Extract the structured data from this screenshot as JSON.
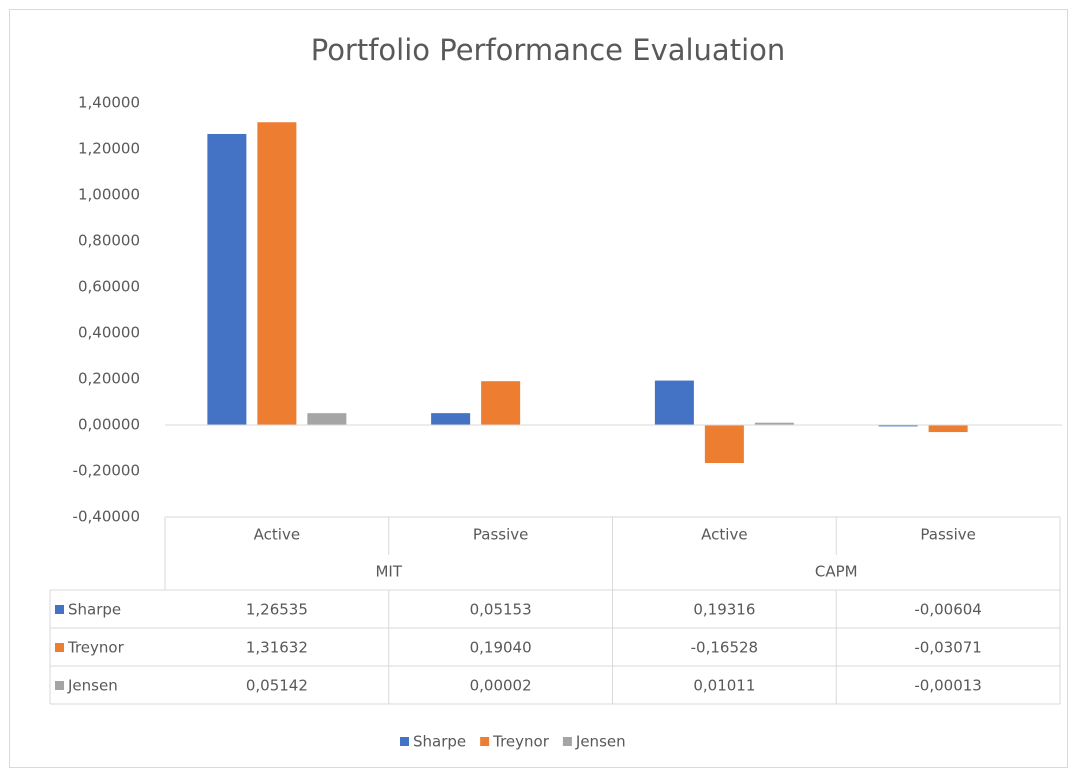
{
  "chart_data": {
    "type": "bar",
    "title": "Portfolio Performance Evaluation",
    "categories": [
      "Active",
      "Passive",
      "Active",
      "Passive"
    ],
    "groups": [
      "MIT",
      "CAPM"
    ],
    "series": [
      {
        "name": "Sharpe",
        "color": "#4472c4",
        "values": [
          1.26535,
          0.05153,
          0.19316,
          -0.00604
        ],
        "value_labels": [
          "1,26535",
          "0,05153",
          "0,19316",
          "-0,00604"
        ]
      },
      {
        "name": "Treynor",
        "color": "#ed7d31",
        "values": [
          1.31632,
          0.1904,
          -0.16528,
          -0.03071
        ],
        "value_labels": [
          "1,31632",
          "0,19040",
          "-0,16528",
          "-0,03071"
        ]
      },
      {
        "name": "Jensen",
        "color": "#a5a5a5",
        "values": [
          0.05142,
          2e-05,
          0.01011,
          -0.00013
        ],
        "value_labels": [
          "0,05142",
          "0,00002",
          "0,01011",
          "-0,00013"
        ]
      }
    ],
    "ylim": [
      -0.4,
      1.4
    ],
    "yticks": [
      {
        "value": 1.4,
        "label": "1,40000"
      },
      {
        "value": 1.2,
        "label": "1,20000"
      },
      {
        "value": 1.0,
        "label": "1,00000"
      },
      {
        "value": 0.8,
        "label": "0,80000"
      },
      {
        "value": 0.6,
        "label": "0,60000"
      },
      {
        "value": 0.4,
        "label": "0,40000"
      },
      {
        "value": 0.2,
        "label": "0,20000"
      },
      {
        "value": 0,
        "label": "0,00000"
      },
      {
        "value": -0.2,
        "label": "-0,20000"
      },
      {
        "value": -0.4,
        "label": "-0,40000"
      }
    ],
    "grid": false
  }
}
